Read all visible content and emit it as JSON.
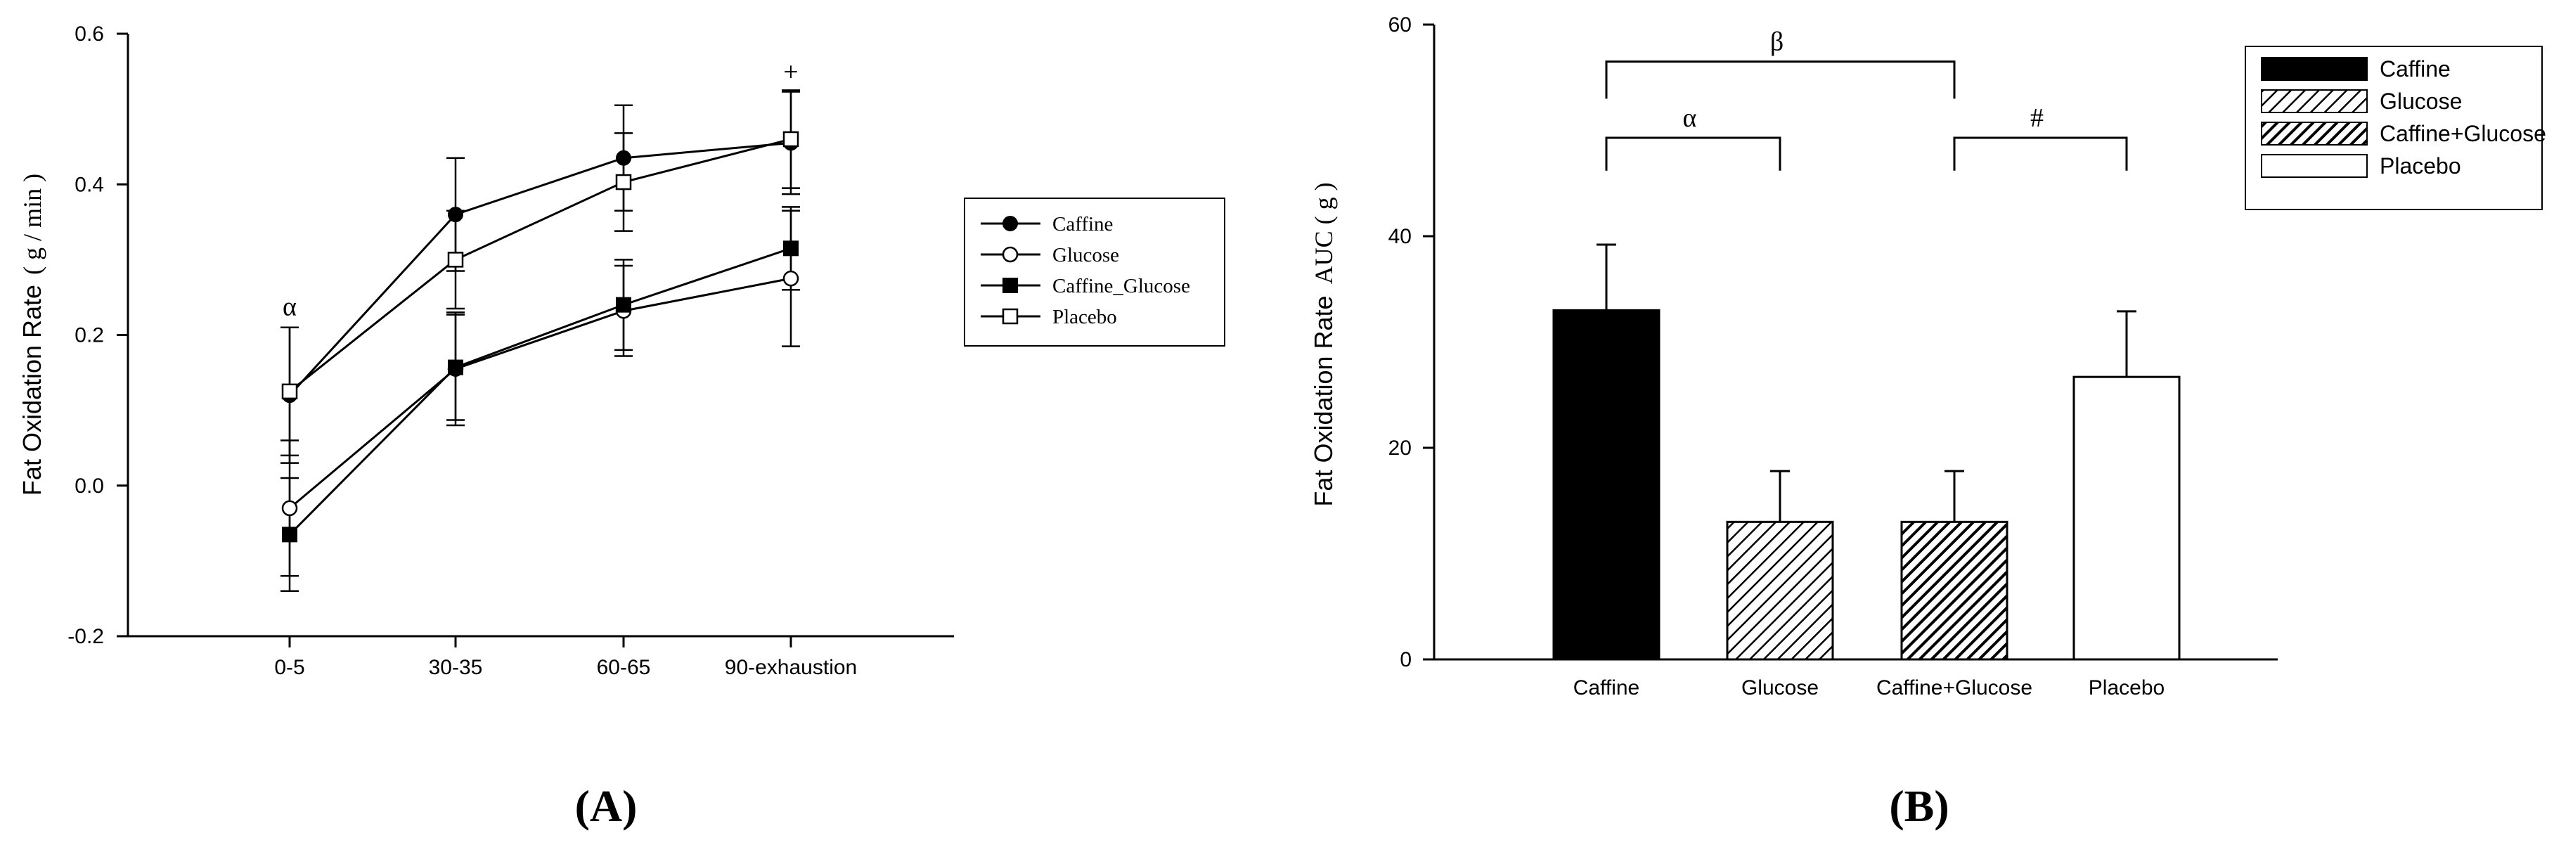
{
  "chart_data": [
    {
      "type": "line",
      "panel_label": "(A)",
      "ylabel": "Fat Oxidation Rate ( g / min )",
      "ylabel_main": "Fat Oxidation Rate",
      "ylabel_unit": "( g / min )",
      "xlabel": "",
      "categories": [
        "0-5",
        "30-35",
        "60-65",
        "90-exhaustion"
      ],
      "ylim": [
        -0.2,
        0.6
      ],
      "yticks": [
        "-0.2",
        "0.0",
        "0.2",
        "0.4",
        "0.6"
      ],
      "grid": false,
      "legend_position": "right",
      "series": [
        {
          "name": "Caffine",
          "marker": "filled-circle",
          "values": [
            0.12,
            0.36,
            0.435,
            0.455
          ],
          "errors": [
            0.09,
            0.075,
            0.07,
            0.068
          ]
        },
        {
          "name": "Glucose",
          "marker": "open-circle",
          "values": [
            -0.03,
            0.155,
            0.232,
            0.275
          ],
          "errors": [
            0.09,
            0.075,
            0.06,
            0.09
          ]
        },
        {
          "name": "Caffine_Glucose",
          "marker": "filled-square",
          "values": [
            -0.065,
            0.157,
            0.24,
            0.315
          ],
          "errors": [
            0.075,
            0.07,
            0.06,
            0.055
          ]
        },
        {
          "name": "Placebo",
          "marker": "open-square",
          "values": [
            0.125,
            0.3,
            0.403,
            0.46
          ],
          "errors": [
            0.085,
            0.065,
            0.065,
            0.065
          ]
        }
      ],
      "annotations": [
        {
          "text": "α",
          "category": "0-5"
        },
        {
          "text": "+",
          "category": "90-exhaustion"
        }
      ]
    },
    {
      "type": "bar",
      "panel_label": "(B)",
      "ylabel": "Fat Oxidation Rate  AUC ( g )",
      "ylabel_main": "Fat Oxidation Rate",
      "ylabel_unit": "AUC ( g )",
      "xlabel": "",
      "categories": [
        "Caffine",
        "Glucose",
        "Caffine+Glucose",
        "Placebo"
      ],
      "values": [
        33,
        13,
        13,
        26.7
      ],
      "errors": [
        6.2,
        4.8,
        4.8,
        6.2
      ],
      "fills": [
        "solid-black",
        "hatch-light",
        "hatch-dark",
        "white"
      ],
      "ylim": [
        0,
        60
      ],
      "yticks": [
        "0",
        "20",
        "40",
        "60"
      ],
      "grid": false,
      "legend_position": "top-right",
      "legend": [
        "Caffine",
        "Glucose",
        "Caffine+Glucose",
        "Placebo"
      ],
      "brackets": [
        {
          "text": "β",
          "from": "Caffine",
          "to": "Caffine+Glucose"
        },
        {
          "text": "α",
          "from": "Caffine",
          "to": "Glucose"
        },
        {
          "text": "#",
          "from": "Caffine+Glucose",
          "to": "Placebo"
        }
      ]
    }
  ]
}
